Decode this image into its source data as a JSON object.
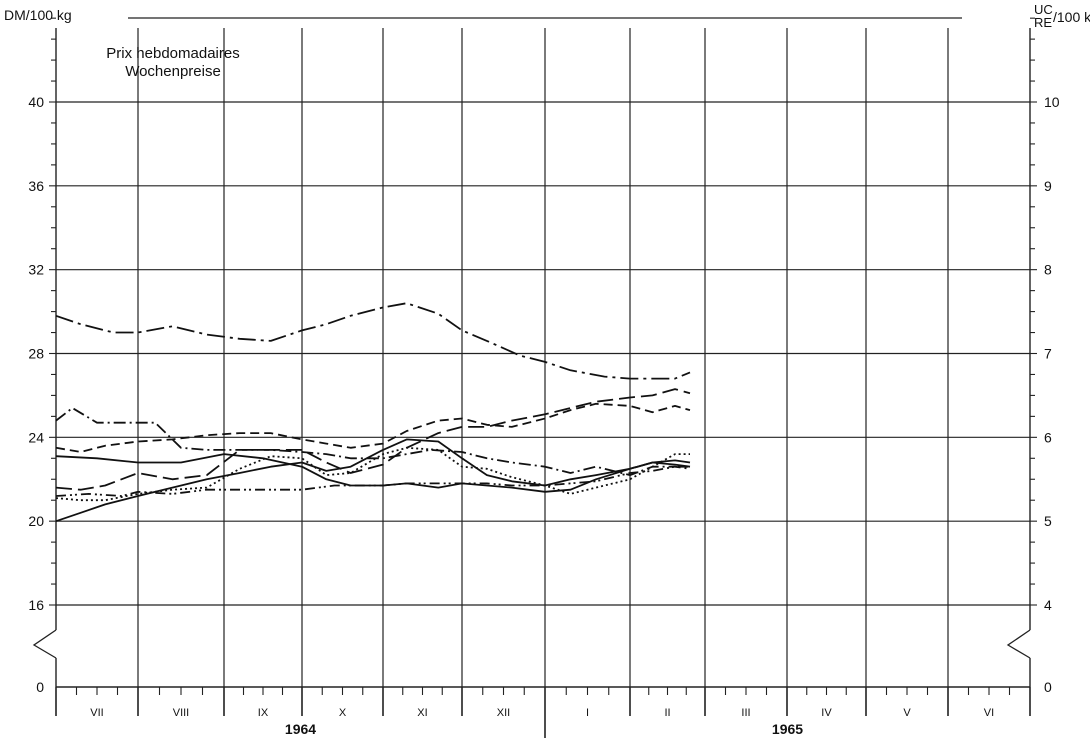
{
  "chart_data": {
    "type": "line",
    "title_line1": "Prix hebdomadaires",
    "title_line2": "Wochenpreise",
    "left_unit": "DM/100 kg",
    "right_unit_top": "UC",
    "right_unit_bottom": "RE",
    "right_unit_suffix": "/100 kg",
    "y_left_ticks": [
      0,
      16,
      20,
      24,
      28,
      32,
      36,
      40
    ],
    "y_right_ticks": [
      0,
      4,
      5,
      6,
      7,
      8,
      9,
      10
    ],
    "ylim": [
      0,
      44
    ],
    "axis_break": "between 0 and 16",
    "grid": true,
    "months": [
      "VII",
      "VIII",
      "IX",
      "X",
      "XI",
      "XII",
      "I",
      "II",
      "III",
      "IV",
      "V",
      "VI"
    ],
    "years": [
      {
        "label": "1964",
        "month_start": 0,
        "month_end": 6
      },
      {
        "label": "1965",
        "month_start": 6,
        "month_end": 12
      }
    ],
    "series": [
      {
        "style": "long-dash-dot",
        "x": [
          0,
          0.3,
          0.7,
          1,
          1.4,
          1.8,
          2.2,
          2.6,
          3,
          3.3,
          3.6,
          4,
          4.3,
          4.7,
          5,
          5.3,
          5.7,
          6,
          6.3,
          6.7,
          7,
          7.3,
          7.6,
          7.8
        ],
        "y": [
          29.8,
          29.4,
          29.0,
          29.0,
          29.3,
          28.9,
          28.7,
          28.6,
          29.1,
          29.4,
          29.8,
          30.2,
          30.4,
          29.9,
          29.1,
          28.6,
          27.9,
          27.6,
          27.2,
          26.9,
          26.8,
          26.8,
          26.8,
          27.1
        ]
      },
      {
        "style": "dash-dot",
        "x": [
          0,
          0.2,
          0.5,
          1,
          1.2,
          1.5,
          1.8,
          2.2,
          2.6,
          3,
          3.3,
          3.6,
          4,
          4.3,
          4.6,
          5,
          5.3,
          5.6,
          6,
          6.3,
          6.6,
          7,
          7.3,
          7.6,
          7.8
        ],
        "y": [
          24.8,
          25.4,
          24.7,
          24.7,
          24.7,
          23.5,
          23.4,
          23.4,
          23.4,
          23.3,
          23.2,
          23.0,
          23.0,
          23.2,
          23.4,
          23.3,
          23.0,
          22.8,
          22.6,
          22.3,
          22.6,
          22.2,
          22.6,
          22.6,
          22.5
        ]
      },
      {
        "style": "dash",
        "x": [
          0,
          0.3,
          0.6,
          1,
          1.4,
          1.8,
          2.2,
          2.6,
          3,
          3.3,
          3.6,
          4,
          4.3,
          4.7,
          5,
          5.3,
          5.6,
          6,
          6.3,
          6.6,
          7,
          7.3,
          7.6,
          7.8
        ],
        "y": [
          23.5,
          23.3,
          23.6,
          23.8,
          23.9,
          24.1,
          24.2,
          24.2,
          23.9,
          23.7,
          23.5,
          23.7,
          24.3,
          24.8,
          24.9,
          24.6,
          24.5,
          24.9,
          25.3,
          25.6,
          25.5,
          25.2,
          25.5,
          25.3
        ]
      },
      {
        "style": "solid",
        "x": [
          0,
          0.5,
          1,
          1.5,
          2,
          2.5,
          3,
          3.3,
          3.6,
          4,
          4.3,
          4.7,
          5,
          5.3,
          5.6,
          6,
          6.3,
          6.6,
          7,
          7.3,
          7.6,
          7.8
        ],
        "y": [
          23.1,
          23.0,
          22.8,
          22.8,
          23.2,
          23.0,
          22.6,
          22.0,
          21.7,
          21.7,
          21.8,
          21.6,
          21.8,
          21.7,
          21.6,
          21.4,
          21.5,
          22.0,
          22.5,
          22.8,
          22.7,
          22.6
        ]
      },
      {
        "style": "long-dash",
        "x": [
          0,
          0.3,
          0.6,
          1,
          1.4,
          1.8,
          2.2,
          2.6,
          3,
          3.3,
          3.6,
          4,
          4.3,
          4.7,
          5,
          5.3,
          5.6,
          6,
          6.3,
          6.6,
          7,
          7.3,
          7.6,
          7.8
        ],
        "y": [
          21.6,
          21.5,
          21.7,
          22.3,
          22.0,
          22.2,
          23.4,
          23.4,
          23.4,
          22.8,
          22.3,
          22.7,
          23.5,
          24.2,
          24.5,
          24.5,
          24.8,
          25.1,
          25.4,
          25.7,
          25.9,
          26.0,
          26.3,
          26.1
        ]
      },
      {
        "style": "dot",
        "x": [
          0,
          0.3,
          0.6,
          1,
          1.4,
          1.8,
          2.2,
          2.6,
          3,
          3.3,
          3.6,
          4,
          4.3,
          4.7,
          5,
          5.3,
          5.6,
          6,
          6.3,
          6.6,
          7,
          7.3,
          7.6,
          7.8
        ],
        "y": [
          21.1,
          21.0,
          21.0,
          21.3,
          21.5,
          21.6,
          22.5,
          23.1,
          23.0,
          22.2,
          22.3,
          23.2,
          23.5,
          23.4,
          22.6,
          22.5,
          22.1,
          21.7,
          21.3,
          21.6,
          22.0,
          22.6,
          23.2,
          23.2
        ]
      },
      {
        "style": "dash-dot-dot",
        "x": [
          0,
          0.4,
          0.8,
          1,
          1.4,
          1.8,
          2.2,
          2.6,
          3,
          3.4,
          3.8,
          4,
          4.3,
          4.7,
          5,
          5.3,
          5.6,
          6,
          6.3,
          6.6,
          7,
          7.3,
          7.6,
          7.8
        ],
        "y": [
          21.2,
          21.3,
          21.2,
          21.4,
          21.3,
          21.5,
          21.5,
          21.5,
          21.5,
          21.7,
          21.7,
          21.7,
          21.8,
          21.8,
          21.8,
          21.8,
          21.7,
          21.7,
          21.8,
          21.9,
          22.3,
          22.4,
          22.6,
          22.6
        ]
      },
      {
        "style": "solid",
        "x": [
          0,
          0.3,
          0.6,
          1,
          1.4,
          1.8,
          2.2,
          2.6,
          3,
          3.3,
          3.6,
          4,
          4.3,
          4.7,
          5,
          5.3,
          5.6,
          6,
          6.3,
          6.6,
          7,
          7.3,
          7.6,
          7.8
        ],
        "y": [
          20.0,
          20.4,
          20.8,
          21.2,
          21.6,
          22.0,
          22.3,
          22.6,
          22.8,
          22.4,
          22.6,
          23.4,
          23.9,
          23.8,
          23.0,
          22.2,
          21.9,
          21.7,
          22.0,
          22.2,
          22.5,
          22.8,
          22.9,
          22.8
        ]
      }
    ]
  }
}
